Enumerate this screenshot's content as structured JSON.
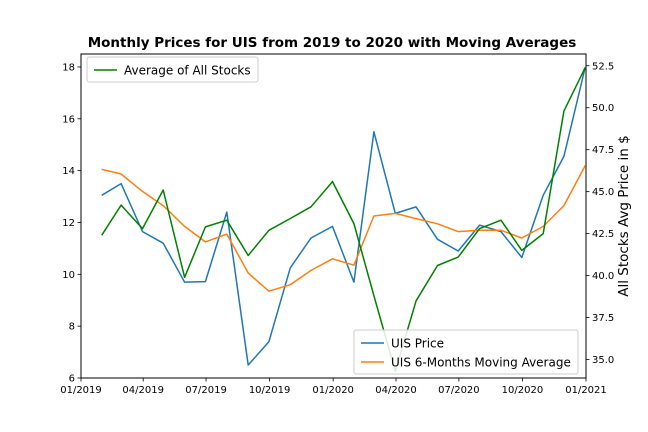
{
  "chart_data": {
    "type": "line",
    "title": "Monthly Prices for UIS from 2019 to 2020 with Moving Averages",
    "xlabel": "",
    "ylabel_left": "",
    "ylabel_right": "All Stocks Avg Price in $",
    "x_ticks": [
      "01/2019",
      "04/2019",
      "07/2019",
      "10/2019",
      "01/2020",
      "04/2020",
      "07/2020",
      "10/2020",
      "01/2021"
    ],
    "x_dates": [
      "2019-01-31",
      "2019-02-28",
      "2019-03-31",
      "2019-04-30",
      "2019-05-31",
      "2019-06-30",
      "2019-07-31",
      "2019-08-31",
      "2019-09-30",
      "2019-10-31",
      "2019-11-30",
      "2019-12-31",
      "2020-01-31",
      "2020-02-29",
      "2020-03-31",
      "2020-04-30",
      "2020-05-31",
      "2020-06-30",
      "2020-07-31",
      "2020-08-31",
      "2020-09-30",
      "2020-10-31",
      "2020-11-30",
      "2020-12-31"
    ],
    "x_range": [
      "2019-01-01",
      "2021-01-01"
    ],
    "left_axis": {
      "ylim": [
        6,
        18.5
      ],
      "ticks": [
        "6",
        "8",
        "10",
        "12",
        "14",
        "16",
        "18"
      ]
    },
    "right_axis": {
      "ylim": [
        33.9,
        53.2
      ],
      "ticks": [
        "35.0",
        "37.5",
        "40.0",
        "42.5",
        "45.0",
        "47.5",
        "50.0",
        "52.5"
      ]
    },
    "series": [
      {
        "name": "UIS Price",
        "axis": "left",
        "color": "#1f77b4",
        "values": [
          13.05,
          13.5,
          11.65,
          11.2,
          9.7,
          9.72,
          12.4,
          6.5,
          7.4,
          10.25,
          11.4,
          11.85,
          9.7,
          15.5,
          12.35,
          12.6,
          11.35,
          10.9,
          11.9,
          11.65,
          10.65,
          13.05,
          14.55,
          18.0
        ]
      },
      {
        "name": "UIS 6-Months Moving Average",
        "axis": "left",
        "color": "#ff7f0e",
        "values": [
          14.05,
          13.87,
          13.2,
          12.65,
          11.85,
          11.25,
          11.55,
          10.05,
          9.35,
          9.6,
          10.15,
          10.6,
          10.35,
          12.25,
          12.35,
          12.15,
          11.95,
          11.65,
          11.7,
          11.7,
          11.4,
          11.85,
          12.65,
          14.2
        ]
      },
      {
        "name": "Average of All Stocks",
        "axis": "right",
        "color": "#008000",
        "values": [
          42.4,
          44.2,
          42.8,
          45.1,
          39.9,
          42.9,
          43.3,
          41.2,
          42.7,
          43.4,
          44.1,
          45.6,
          43.1,
          38.8,
          34.3,
          38.5,
          40.6,
          41.1,
          42.8,
          43.3,
          41.5,
          42.5,
          49.8,
          52.4
        ]
      }
    ],
    "legends": [
      {
        "placement": "upper-left",
        "entries": [
          "Average of All Stocks"
        ]
      },
      {
        "placement": "lower-right",
        "entries": [
          "UIS Price",
          "UIS 6-Months Moving Average"
        ]
      }
    ],
    "grid": false
  }
}
